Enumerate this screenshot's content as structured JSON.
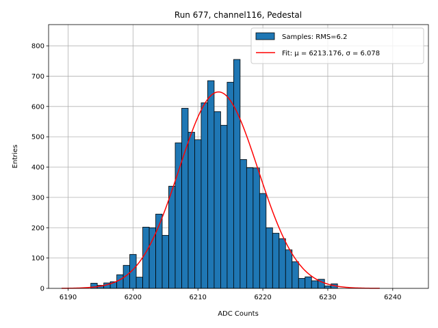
{
  "chart_data": {
    "type": "bar",
    "title": "Run 677, channel116, Pedestal",
    "xlabel": "ADC Counts",
    "ylabel": "Entries",
    "xlim": [
      6187,
      6245.5
    ],
    "ylim": [
      0,
      870
    ],
    "x_ticks": [
      6190,
      6200,
      6210,
      6220,
      6230,
      6240
    ],
    "y_ticks": [
      0,
      100,
      200,
      300,
      400,
      500,
      600,
      700,
      800
    ],
    "grid": true,
    "legend_position": "top-right",
    "bin_width": 1,
    "bins": [
      {
        "x": 6194,
        "count": 17
      },
      {
        "x": 6195,
        "count": 10
      },
      {
        "x": 6196,
        "count": 18
      },
      {
        "x": 6197,
        "count": 22
      },
      {
        "x": 6198,
        "count": 45
      },
      {
        "x": 6199,
        "count": 76
      },
      {
        "x": 6200,
        "count": 112
      },
      {
        "x": 6201,
        "count": 37
      },
      {
        "x": 6202,
        "count": 202
      },
      {
        "x": 6203,
        "count": 200
      },
      {
        "x": 6204,
        "count": 245
      },
      {
        "x": 6205,
        "count": 175
      },
      {
        "x": 6206,
        "count": 337
      },
      {
        "x": 6207,
        "count": 480
      },
      {
        "x": 6208,
        "count": 594
      },
      {
        "x": 6209,
        "count": 515
      },
      {
        "x": 6210,
        "count": 490
      },
      {
        "x": 6211,
        "count": 612
      },
      {
        "x": 6212,
        "count": 685
      },
      {
        "x": 6213,
        "count": 583
      },
      {
        "x": 6214,
        "count": 538
      },
      {
        "x": 6215,
        "count": 680
      },
      {
        "x": 6216,
        "count": 755
      },
      {
        "x": 6217,
        "count": 425
      },
      {
        "x": 6218,
        "count": 398
      },
      {
        "x": 6219,
        "count": 397
      },
      {
        "x": 6220,
        "count": 313
      },
      {
        "x": 6221,
        "count": 200
      },
      {
        "x": 6222,
        "count": 182
      },
      {
        "x": 6223,
        "count": 164
      },
      {
        "x": 6224,
        "count": 127
      },
      {
        "x": 6225,
        "count": 88
      },
      {
        "x": 6226,
        "count": 33
      },
      {
        "x": 6227,
        "count": 38
      },
      {
        "x": 6228,
        "count": 25
      },
      {
        "x": 6229,
        "count": 30
      },
      {
        "x": 6230,
        "count": 8
      },
      {
        "x": 6231,
        "count": 15
      }
    ],
    "fit": {
      "mu": 6213.176,
      "sigma": 6.078,
      "amplitude": 648,
      "x_range": [
        6189,
        6238
      ]
    },
    "series": [
      {
        "name": "Samples: RMS=6.2",
        "kind": "histogram",
        "color": "#1f77b4"
      },
      {
        "name": "Fit: μ = 6213.176, σ = 6.078",
        "kind": "line",
        "color": "#ff0000"
      }
    ]
  }
}
